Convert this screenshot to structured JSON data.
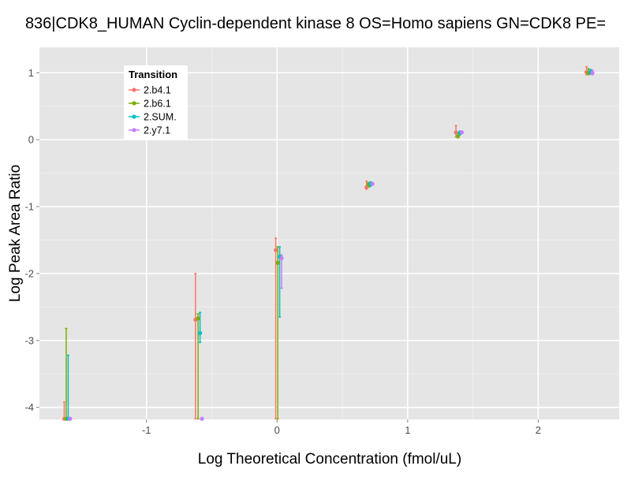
{
  "chart_data": {
    "type": "scatter",
    "title": "836|CDK8_HUMAN Cyclin-dependent kinase 8 OS=Homo sapiens GN=CDK8 PE=",
    "xlabel": "Log Theoretical Concentration (fmol/uL)",
    "ylabel": "Log Peak Area Ratio",
    "xlim": [
      -1.82,
      2.62
    ],
    "ylim": [
      -4.18,
      1.38
    ],
    "xticks": [
      -1,
      0,
      1,
      2
    ],
    "xtick_labels": [
      "-1",
      "0",
      "1",
      "2"
    ],
    "yticks": [
      -4,
      -3,
      -2,
      -1,
      0,
      1
    ],
    "ytick_labels": [
      "-4",
      "-3",
      "-2",
      "-1",
      "0",
      "1"
    ],
    "grid": true,
    "legend": {
      "title": "Transition",
      "placement": "top-left inside",
      "entries": [
        "2.b4.1",
        "2.b6.1",
        "2.SUM.",
        "2.y7.1"
      ]
    },
    "series": [
      {
        "name": "2.b4.1",
        "color": "#F8766D",
        "points": [
          {
            "x": -1.63,
            "y": -4.17,
            "ymin": -4.17,
            "ymax": -3.92
          },
          {
            "x": -0.625,
            "y": -2.69,
            "ymin": -4.17,
            "ymax": -2.0
          },
          {
            "x": -0.01,
            "y": -1.65,
            "ymin": -4.17,
            "ymax": -1.47
          },
          {
            "x": 0.685,
            "y": -0.71,
            "ymin": -0.74,
            "ymax": -0.62
          },
          {
            "x": 1.37,
            "y": 0.11,
            "ymin": 0.04,
            "ymax": 0.21
          },
          {
            "x": 2.37,
            "y": 1.01,
            "ymin": 0.97,
            "ymax": 1.09
          }
        ]
      },
      {
        "name": "2.b6.1",
        "color": "#7CAE00",
        "points": [
          {
            "x": -1.615,
            "y": -4.17,
            "ymin": -4.17,
            "ymax": -2.82
          },
          {
            "x": -0.605,
            "y": -2.67,
            "ymin": -4.17,
            "ymax": -2.6
          },
          {
            "x": 0.005,
            "y": -1.84,
            "ymin": -4.17,
            "ymax": -1.6
          },
          {
            "x": 0.7,
            "y": -0.67,
            "ymin": -0.71,
            "ymax": -0.64
          },
          {
            "x": 1.385,
            "y": 0.05,
            "ymin": 0.03,
            "ymax": 0.11
          },
          {
            "x": 2.385,
            "y": 1.0,
            "ymin": 0.97,
            "ymax": 1.06
          }
        ]
      },
      {
        "name": "2.SUM.",
        "color": "#00BFC4",
        "points": [
          {
            "x": -1.6,
            "y": -4.17,
            "ymin": -4.17,
            "ymax": -3.22
          },
          {
            "x": -0.59,
            "y": -2.89,
            "ymin": -3.03,
            "ymax": -2.58
          },
          {
            "x": 0.02,
            "y": -1.75,
            "ymin": -2.65,
            "ymax": -1.6
          },
          {
            "x": 0.715,
            "y": -0.66,
            "ymin": -0.7,
            "ymax": -0.63
          },
          {
            "x": 1.4,
            "y": 0.1,
            "ymin": 0.07,
            "ymax": 0.13
          },
          {
            "x": 2.4,
            "y": 1.01,
            "ymin": 0.98,
            "ymax": 1.05
          }
        ]
      },
      {
        "name": "2.y7.1",
        "color": "#C77CFF",
        "points": [
          {
            "x": -1.585,
            "y": -4.17,
            "ymin": -4.17,
            "ymax": -4.17
          },
          {
            "x": -0.575,
            "y": -4.17,
            "ymin": -4.17,
            "ymax": -4.17
          },
          {
            "x": 0.035,
            "y": -1.77,
            "ymin": -2.22,
            "ymax": -1.72
          },
          {
            "x": 0.73,
            "y": -0.66,
            "ymin": -0.68,
            "ymax": -0.64
          },
          {
            "x": 1.415,
            "y": 0.11,
            "ymin": 0.09,
            "ymax": 0.13
          },
          {
            "x": 2.415,
            "y": 1.0,
            "ymin": 0.97,
            "ymax": 1.04
          }
        ]
      }
    ]
  }
}
